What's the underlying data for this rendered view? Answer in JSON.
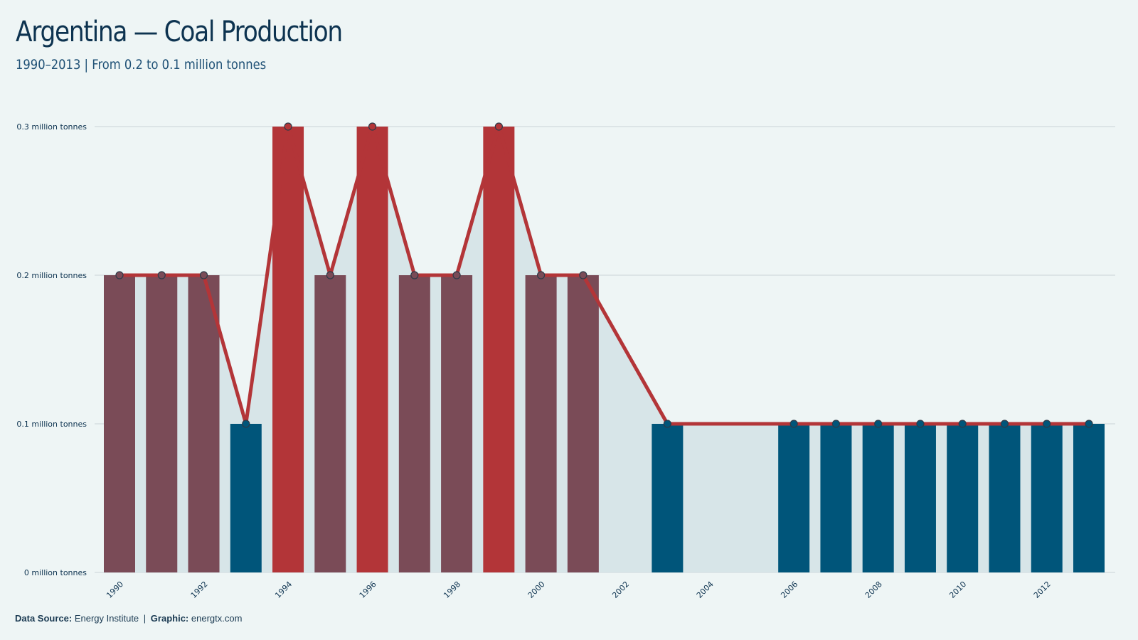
{
  "title": "Argentina — Coal Production",
  "subtitle": "1990–2013 | From 0.2 to 0.1 million tonnes",
  "footer": {
    "source_label": "Data Source:",
    "source_value": "Energy Institute",
    "separator": "|",
    "graphic_label": "Graphic:",
    "graphic_value": "energtx.com"
  },
  "colors": {
    "high": "#b33538",
    "mid": "#7a4b57",
    "low": "#00557a",
    "line": "#b33538",
    "area": "#d7e5e8",
    "grid": "#c9d3d7",
    "background": "#eef5f5"
  },
  "chart_data": {
    "type": "bar",
    "x": [
      1990,
      1991,
      1992,
      1993,
      1994,
      1995,
      1996,
      1997,
      1998,
      1999,
      2000,
      2001,
      2003,
      2006,
      2007,
      2008,
      2009,
      2010,
      2011,
      2012,
      2013
    ],
    "values": [
      0.2,
      0.2,
      0.2,
      0.1,
      0.3,
      0.2,
      0.3,
      0.2,
      0.2,
      0.3,
      0.2,
      0.2,
      0.1,
      0.1,
      0.1,
      0.1,
      0.1,
      0.1,
      0.1,
      0.1,
      0.1
    ],
    "xticks": [
      1990,
      1992,
      1994,
      1996,
      1998,
      2000,
      2002,
      2004,
      2006,
      2008,
      2010,
      2012
    ],
    "xlim": [
      1990,
      2013
    ],
    "yticks": [
      0,
      0.1,
      0.2,
      0.3
    ],
    "ytick_labels": [
      "0 million tonnes",
      "0.1 million tonnes",
      "0.2 million tonnes",
      "0.3 million tonnes"
    ],
    "ylim": [
      0,
      0.3
    ],
    "grid": true,
    "overlay": "line-with-markers-and-area",
    "title": "Argentina — Coal Production",
    "xlabel": "",
    "ylabel": ""
  }
}
